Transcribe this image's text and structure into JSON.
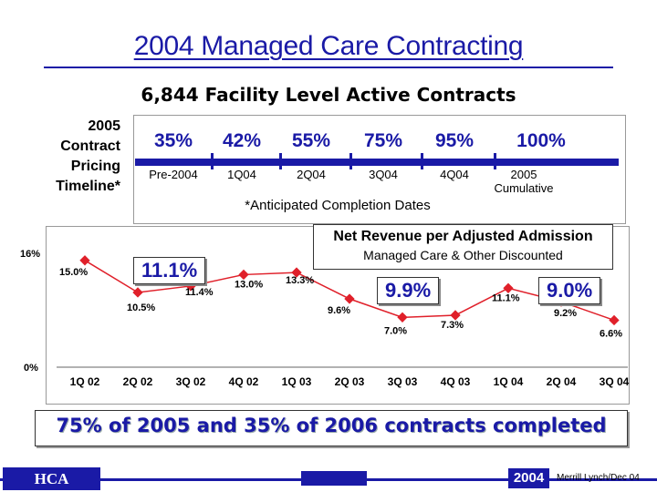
{
  "title": "2004 Managed Care Contracting",
  "subtitle": "6,844 Facility Level Active Contracts",
  "timeline": {
    "label_lines": [
      "2005",
      "Contract",
      "Pricing",
      "Timeline*"
    ],
    "points": [
      {
        "pct": "35%",
        "label": "Pre-2004"
      },
      {
        "pct": "42%",
        "label": "1Q04"
      },
      {
        "pct": "55%",
        "label": "2Q04"
      },
      {
        "pct": "75%",
        "label": "3Q04"
      },
      {
        "pct": "95%",
        "label": "4Q04"
      },
      {
        "pct": "100%",
        "label": "2005 Cumulative"
      }
    ],
    "footnote": "*Anticipated Completion Dates"
  },
  "chart_data": {
    "type": "line",
    "title": "Net Revenue per Adjusted Admission",
    "subtitle": "Managed Care & Other Discounted",
    "categories": [
      "1Q 02",
      "2Q 02",
      "3Q 02",
      "4Q 02",
      "1Q 03",
      "2Q 03",
      "3Q 03",
      "4Q 03",
      "1Q 04",
      "2Q 04",
      "3Q 04"
    ],
    "values": [
      15.0,
      10.5,
      11.4,
      13.0,
      13.3,
      9.6,
      7.0,
      7.3,
      11.1,
      9.2,
      6.6
    ],
    "value_labels": [
      "15.0%",
      "10.5%",
      "11.4%",
      "13.0%",
      "13.3%",
      "9.6%",
      "7.0%",
      "7.3%",
      "11.1%",
      "9.2%",
      "6.6%"
    ],
    "y_tick_labels": [
      "16%",
      "0%"
    ],
    "ylim": [
      0,
      16
    ],
    "series_color": "#e0202a",
    "callouts": [
      {
        "text": "11.1%",
        "period": "2002"
      },
      {
        "text": "9.9%",
        "period": "2003"
      },
      {
        "text": "9.0%",
        "period": "2004"
      }
    ]
  },
  "banner": "75% of 2005 and 35% of 2006 contracts completed",
  "footer": {
    "company": "HCA",
    "year": "2004",
    "note": "Merrill Lynch/Dec 04"
  },
  "colors": {
    "accent": "#1a1aa6",
    "series": "#e0202a"
  }
}
